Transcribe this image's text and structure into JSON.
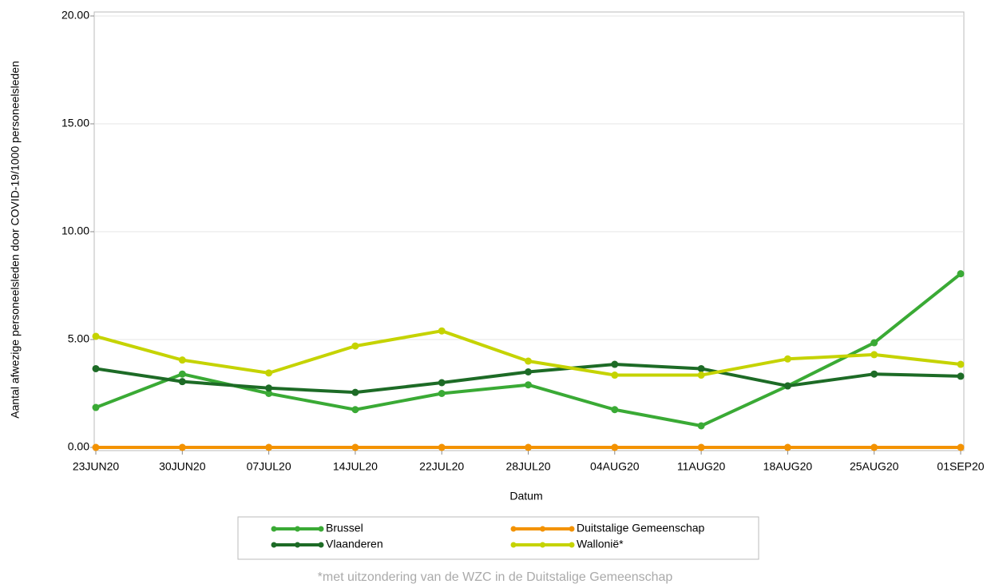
{
  "chart_data": {
    "type": "line",
    "y_label": "Aantal afwezige personeelsleden door COVID-19/1000 personeelsleden",
    "x_label": "Datum",
    "footnote": "*met uitzondering van de WZC in de Duitstalige Gemeenschap",
    "categories": [
      "23JUN20",
      "30JUN20",
      "07JUL20",
      "14JUL20",
      "22JUL20",
      "28JUL20",
      "04AUG20",
      "11AUG20",
      "18AUG20",
      "25AUG20",
      "01SEP20"
    ],
    "series": [
      {
        "name": "Brussel",
        "color": "#3aaa35",
        "values": [
          1.85,
          3.4,
          2.5,
          1.75,
          2.5,
          2.9,
          1.75,
          1.0,
          2.85,
          4.85,
          8.05
        ]
      },
      {
        "name": "Duitstalige Gemeenschap",
        "color": "#f39200",
        "values": [
          0,
          0,
          0,
          0,
          0,
          0,
          0,
          0,
          0,
          0,
          0
        ]
      },
      {
        "name": "Vlaanderen",
        "color": "#1d6b26",
        "values": [
          3.65,
          3.05,
          2.75,
          2.55,
          3.0,
          3.5,
          3.85,
          3.65,
          2.85,
          3.4,
          3.3
        ]
      },
      {
        "name": "Wallonië*",
        "color": "#c5d300",
        "values": [
          5.15,
          4.05,
          3.45,
          4.7,
          5.4,
          4.0,
          3.35,
          3.35,
          4.1,
          4.3,
          3.85
        ]
      }
    ],
    "ylim": [
      0,
      20
    ],
    "yticks": [
      {
        "value": 0,
        "label": "0.00"
      },
      {
        "value": 5,
        "label": "5.00"
      },
      {
        "value": 10,
        "label": "10.00"
      },
      {
        "value": 15,
        "label": "15.00"
      },
      {
        "value": 20,
        "label": "20.00"
      }
    ],
    "grid": true
  }
}
